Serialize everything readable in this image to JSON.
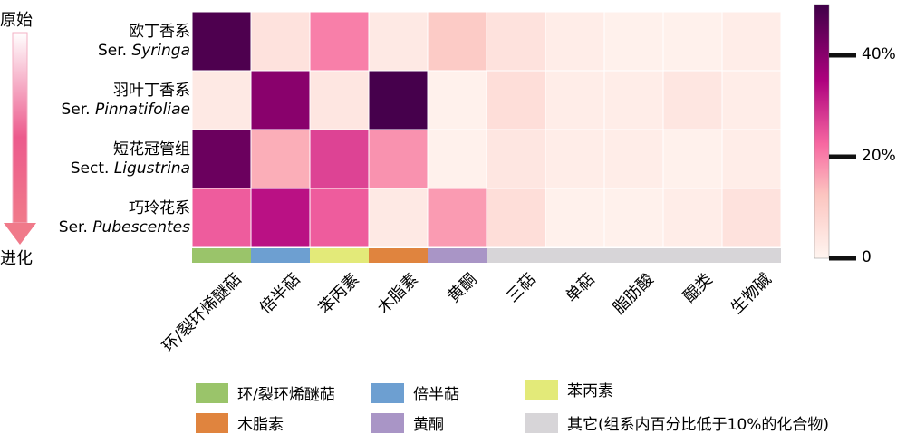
{
  "chart_data": {
    "type": "heatmap",
    "rows": [
      {
        "cn": "欧丁香系",
        "prefix": "Ser. ",
        "latin": "Syringa"
      },
      {
        "cn": "羽叶丁香系",
        "prefix": "Ser. ",
        "latin": "Pinnatifoliae"
      },
      {
        "cn": "短花冠管组",
        "prefix": "Sect. ",
        "latin": "Ligustrina"
      },
      {
        "cn": "巧玲花系",
        "prefix": "Ser. ",
        "latin": "Pubescentes"
      }
    ],
    "columns": [
      "环/裂环烯醚萜",
      "倍半萜",
      "苯丙素",
      "木脂素",
      "黄酮",
      "三萜",
      "单萜",
      "脂肪酸",
      "醌类",
      "生物碱"
    ],
    "values": [
      [
        48,
        5,
        20,
        3,
        11,
        5,
        2,
        1,
        1,
        2
      ],
      [
        3,
        40,
        4,
        49,
        1,
        6,
        2,
        2,
        4,
        2
      ],
      [
        44,
        15,
        27,
        18,
        1,
        4,
        2,
        2,
        1,
        2
      ],
      [
        24,
        33,
        24,
        3,
        17,
        6,
        1,
        1,
        2,
        5
      ]
    ],
    "vmin": 0,
    "vmax": 50,
    "colorbar_ticks": [
      {
        "value": 0,
        "label": "0"
      },
      {
        "value": 20,
        "label": "20%"
      },
      {
        "value": 40,
        "label": "40%"
      }
    ],
    "column_groups": [
      "green",
      "blue",
      "yellow",
      "orange",
      "purple",
      "gray",
      "gray",
      "gray",
      "gray",
      "gray"
    ],
    "arrow_top_label": "原始",
    "arrow_bottom_label": "进化",
    "legend": [
      {
        "label": "环/裂环烯醚萜",
        "color": "#9ac46a"
      },
      {
        "label": "倍半萜",
        "color": "#6d9fd1"
      },
      {
        "label": "苯丙素",
        "color": "#e3ea79"
      },
      {
        "label": "木脂素",
        "color": "#e0843e"
      },
      {
        "label": "黄酮",
        "color": "#a995c6"
      },
      {
        "label": "其它(组系内百分比低于10%的化合物)",
        "color": "#d7d5d8"
      }
    ],
    "group_colors": {
      "green": "#9ac46a",
      "blue": "#6d9fd1",
      "yellow": "#e3ea79",
      "orange": "#e0843e",
      "purple": "#a995c6",
      "gray": "#d7d5d8"
    }
  }
}
